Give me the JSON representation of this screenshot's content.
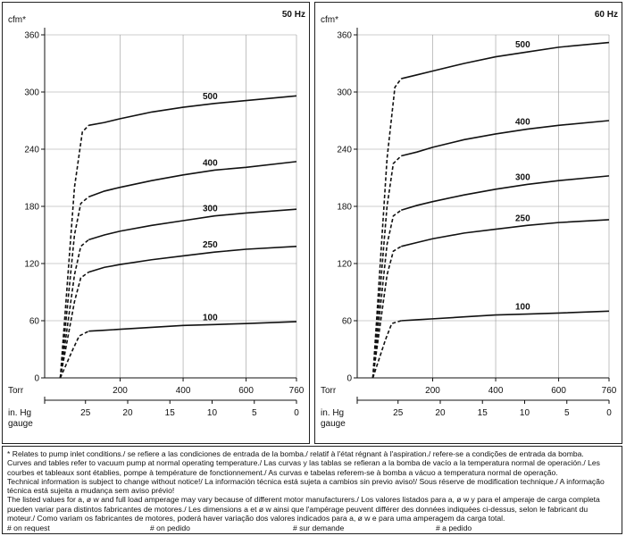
{
  "chart_data": [
    {
      "type": "line",
      "title": "50 Hz",
      "ylabel": "cfm*",
      "xlabel": "Torr",
      "xlabel2": "in. Hg gauge",
      "ylim": [
        0,
        360
      ],
      "xlim": [
        0,
        760
      ],
      "yticks": [
        "0",
        "60",
        "120",
        "180",
        "240",
        "300",
        "360"
      ],
      "xticks": [
        "200",
        "400",
        "600",
        "760"
      ],
      "xticks2": [
        "25",
        "20",
        "15",
        "10",
        "5",
        "0"
      ],
      "series": [
        {
          "name": "500",
          "x": [
            10,
            55,
            80,
            100,
            150,
            200,
            300,
            400,
            500,
            600,
            760
          ],
          "y": [
            0,
            200,
            258,
            265,
            268,
            272,
            279,
            284,
            288,
            291,
            296
          ]
        },
        {
          "name": "400",
          "x": [
            10,
            55,
            75,
            100,
            150,
            200,
            300,
            400,
            500,
            600,
            760
          ],
          "y": [
            0,
            150,
            183,
            190,
            196,
            200,
            207,
            213,
            218,
            221,
            227
          ]
        },
        {
          "name": "300",
          "x": [
            10,
            55,
            75,
            100,
            150,
            200,
            300,
            400,
            500,
            600,
            760
          ],
          "y": [
            0,
            108,
            138,
            145,
            150,
            154,
            160,
            165,
            170,
            173,
            177
          ]
        },
        {
          "name": "250",
          "x": [
            10,
            55,
            75,
            100,
            150,
            200,
            300,
            400,
            500,
            600,
            760
          ],
          "y": [
            0,
            80,
            105,
            111,
            116,
            119,
            124,
            128,
            132,
            135,
            138
          ]
        },
        {
          "name": "100",
          "x": [
            10,
            50,
            70,
            100,
            150,
            200,
            300,
            400,
            500,
            600,
            760
          ],
          "y": [
            0,
            30,
            44,
            49,
            50,
            51,
            53,
            55,
            56,
            57,
            59
          ]
        }
      ]
    },
    {
      "type": "line",
      "title": "60 Hz",
      "ylabel": "cfm*",
      "xlabel": "Torr",
      "xlabel2": "in. Hg gauge",
      "ylim": [
        0,
        360
      ],
      "xlim": [
        0,
        760
      ],
      "yticks": [
        "0",
        "60",
        "120",
        "180",
        "240",
        "300",
        "360"
      ],
      "xticks": [
        "200",
        "400",
        "600",
        "760"
      ],
      "xticks2": [
        "25",
        "20",
        "15",
        "10",
        "5",
        "0"
      ],
      "series": [
        {
          "name": "500",
          "x": [
            10,
            55,
            80,
            100,
            150,
            200,
            300,
            400,
            500,
            600,
            760
          ],
          "y": [
            0,
            230,
            305,
            314,
            318,
            322,
            330,
            337,
            342,
            347,
            352
          ]
        },
        {
          "name": "400",
          "x": [
            10,
            55,
            75,
            100,
            150,
            200,
            300,
            400,
            500,
            600,
            760
          ],
          "y": [
            0,
            180,
            225,
            233,
            237,
            242,
            250,
            256,
            261,
            265,
            270
          ]
        },
        {
          "name": "300",
          "x": [
            10,
            55,
            75,
            100,
            150,
            200,
            300,
            400,
            500,
            600,
            760
          ],
          "y": [
            0,
            140,
            170,
            176,
            181,
            185,
            192,
            198,
            203,
            207,
            212
          ]
        },
        {
          "name": "250",
          "x": [
            10,
            55,
            75,
            100,
            150,
            200,
            300,
            400,
            500,
            600,
            760
          ],
          "y": [
            0,
            108,
            133,
            138,
            142,
            146,
            152,
            156,
            160,
            163,
            166
          ]
        },
        {
          "name": "100",
          "x": [
            10,
            50,
            70,
            100,
            150,
            200,
            300,
            400,
            500,
            600,
            760
          ],
          "y": [
            0,
            40,
            57,
            60,
            61,
            62,
            64,
            66,
            67,
            68,
            70
          ]
        }
      ]
    }
  ],
  "notes": {
    "note1": "* Relates to pump inlet conditions./ se refiere a las condiciones de entrada de la bomba./ relatif à l'état régnant à l'aspiration./ refere-se a condições de entrada da bomba.",
    "note2": "Curves and tables refer to vacuum pump at normal operating temperature./ Las curvas y las tablas se refieran a la bomba de vacío a la temperatura normal de operación./ Les courbes et tableaux sont établies, pompe à température de fonctionnement./ As curvas e tabelas referem-se à bomba a vácuo a temperatura normal de operação.",
    "note3": "Technical information is subject to change without notice!/ La información técnica está sujeta a cambios sin previo aviso!/ Sous réserve de modification technique./ A informação técnica está sujeita a mudança sem aviso prévio!",
    "note4": "The listed values for a, ø w and full load amperage may vary because of different motor manufacturers./ Los valores listados para a, ø w y para el amperaje de carga completa pueden variar para distintos fabricantes de motores./ Les dimensions a et ø w ainsi que l'ampérage peuvent différer des données indiquées ci-dessus, selon le fabricant du moteur./ Como variam os fabricantes de motores, poderá haver variação dos valores indicados para a, ø w e para uma amperagem da carga total.",
    "legend": [
      "# on request",
      "# on pedido",
      "# sur demande",
      "# a pedido"
    ]
  }
}
